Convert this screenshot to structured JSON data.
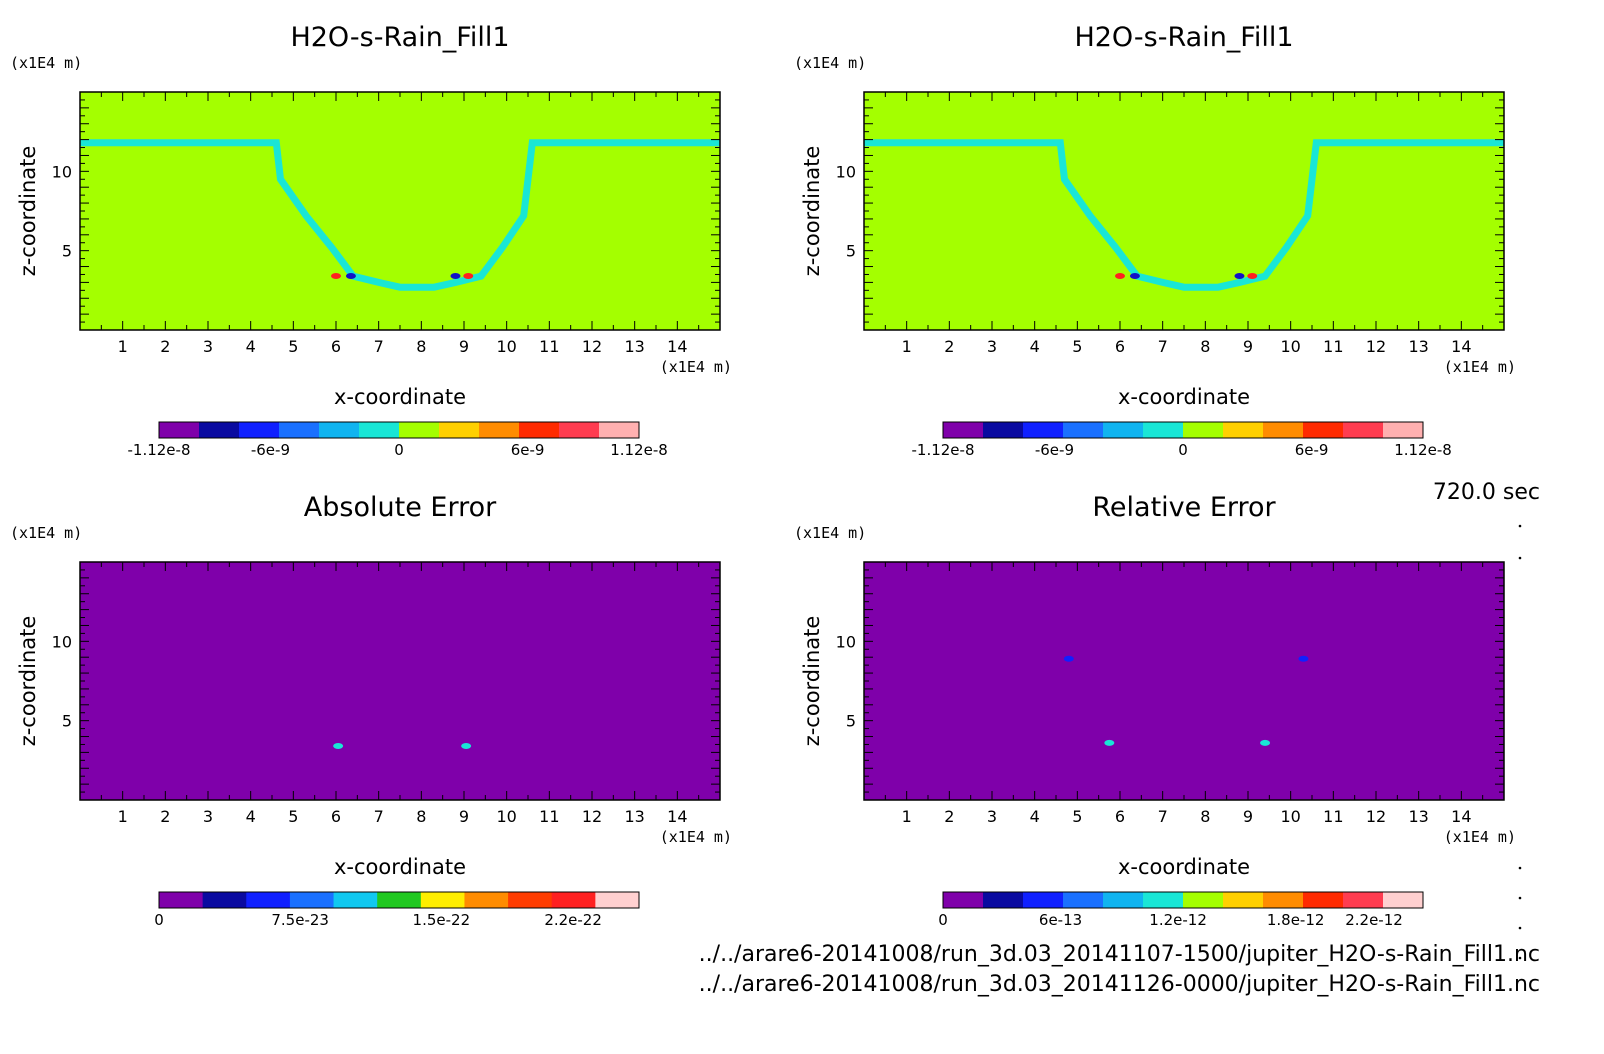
{
  "figure": {
    "time_label": "720.0 sec",
    "files": [
      "../../arare6-20141008/run_3d.03_20141107-1500/jupiter_H2O-s-Rain_Fill1.nc",
      "../../arare6-20141008/run_3d.03_20141126-0000/jupiter_H2O-s-Rain_Fill1.nc"
    ]
  },
  "chart_data": [
    {
      "type": "heatmap",
      "title": "H2O-s-Rain_Fill1",
      "xlabel": "x-coordinate",
      "ylabel": "z-coordinate",
      "x_unit": "(x1E4 m)",
      "y_unit": "(x1E4 m)",
      "xlim": [
        0,
        15
      ],
      "ylim": [
        0,
        15
      ],
      "x_ticks": [
        1,
        2,
        3,
        4,
        5,
        6,
        7,
        8,
        9,
        10,
        11,
        12,
        13,
        14
      ],
      "y_ticks": [
        5,
        10
      ],
      "field_kind": "rain",
      "background_color": "#a4ff00",
      "band_color": "#19e6d6",
      "band_path": [
        [
          0,
          11.8
        ],
        [
          4.6,
          11.8
        ],
        [
          4.7,
          9.5
        ],
        [
          5.3,
          7.2
        ],
        [
          5.9,
          5.2
        ],
        [
          6.4,
          3.4
        ],
        [
          7.0,
          3.0
        ],
        [
          7.5,
          2.7
        ],
        [
          8.3,
          2.7
        ],
        [
          8.8,
          3.0
        ],
        [
          9.4,
          3.4
        ],
        [
          9.9,
          5.2
        ],
        [
          10.4,
          7.2
        ],
        [
          10.5,
          9.5
        ],
        [
          10.6,
          11.8
        ],
        [
          15,
          11.8
        ]
      ],
      "spots": [
        {
          "x": 6.0,
          "y": 3.4,
          "color": "#ff2020"
        },
        {
          "x": 6.35,
          "y": 3.4,
          "color": "#1010c8"
        },
        {
          "x": 8.8,
          "y": 3.4,
          "color": "#1010c8"
        },
        {
          "x": 9.1,
          "y": 3.4,
          "color": "#ff2020"
        }
      ],
      "colorbar": {
        "colors": [
          "#7f00aa",
          "#0a0aa0",
          "#1020ff",
          "#1a70ff",
          "#10b4f0",
          "#19e6d6",
          "#a4ff00",
          "#ffd000",
          "#ff8c00",
          "#ff2a00",
          "#ff3c50",
          "#ffb0b0"
        ],
        "tick_labels": [
          {
            "value": -1.12e-08,
            "label": "-1.12e-8"
          },
          {
            "value": -6e-09,
            "label": "-6e-9"
          },
          {
            "value": 0,
            "label": "0"
          },
          {
            "value": 6e-09,
            "label": "6e-9"
          },
          {
            "value": 1.12e-08,
            "label": "1.12e-8"
          }
        ],
        "range": [
          -1.12e-08,
          1.12e-08
        ]
      }
    },
    {
      "type": "heatmap",
      "title": "H2O-s-Rain_Fill1",
      "xlabel": "x-coordinate",
      "ylabel": "z-coordinate",
      "x_unit": "(x1E4 m)",
      "y_unit": "(x1E4 m)",
      "xlim": [
        0,
        15
      ],
      "ylim": [
        0,
        15
      ],
      "x_ticks": [
        1,
        2,
        3,
        4,
        5,
        6,
        7,
        8,
        9,
        10,
        11,
        12,
        13,
        14
      ],
      "y_ticks": [
        5,
        10
      ],
      "field_kind": "rain",
      "background_color": "#a4ff00",
      "band_color": "#19e6d6",
      "band_path": [
        [
          0,
          11.8
        ],
        [
          4.6,
          11.8
        ],
        [
          4.7,
          9.5
        ],
        [
          5.3,
          7.2
        ],
        [
          5.9,
          5.2
        ],
        [
          6.4,
          3.4
        ],
        [
          7.0,
          3.0
        ],
        [
          7.5,
          2.7
        ],
        [
          8.3,
          2.7
        ],
        [
          8.8,
          3.0
        ],
        [
          9.4,
          3.4
        ],
        [
          9.9,
          5.2
        ],
        [
          10.4,
          7.2
        ],
        [
          10.5,
          9.5
        ],
        [
          10.6,
          11.8
        ],
        [
          15,
          11.8
        ]
      ],
      "spots": [
        {
          "x": 6.0,
          "y": 3.4,
          "color": "#ff2020"
        },
        {
          "x": 6.35,
          "y": 3.4,
          "color": "#1010c8"
        },
        {
          "x": 8.8,
          "y": 3.4,
          "color": "#1010c8"
        },
        {
          "x": 9.1,
          "y": 3.4,
          "color": "#ff2020"
        }
      ],
      "colorbar": {
        "colors": [
          "#7f00aa",
          "#0a0aa0",
          "#1020ff",
          "#1a70ff",
          "#10b4f0",
          "#19e6d6",
          "#a4ff00",
          "#ffd000",
          "#ff8c00",
          "#ff2a00",
          "#ff3c50",
          "#ffb0b0"
        ],
        "tick_labels": [
          {
            "value": -1.12e-08,
            "label": "-1.12e-8"
          },
          {
            "value": -6e-09,
            "label": "-6e-9"
          },
          {
            "value": 0,
            "label": "0"
          },
          {
            "value": 6e-09,
            "label": "6e-9"
          },
          {
            "value": 1.12e-08,
            "label": "1.12e-8"
          }
        ],
        "range": [
          -1.12e-08,
          1.12e-08
        ]
      }
    },
    {
      "type": "heatmap",
      "title": "Absolute Error",
      "xlabel": "x-coordinate",
      "ylabel": "z-coordinate",
      "x_unit": "(x1E4 m)",
      "y_unit": "(x1E4 m)",
      "xlim": [
        0,
        15
      ],
      "ylim": [
        0,
        15
      ],
      "x_ticks": [
        1,
        2,
        3,
        4,
        5,
        6,
        7,
        8,
        9,
        10,
        11,
        12,
        13,
        14
      ],
      "y_ticks": [
        5,
        10
      ],
      "field_kind": "error",
      "background_color": "#7f00aa",
      "spots": [
        {
          "x": 6.05,
          "y": 3.4,
          "color": "#19e6d6"
        },
        {
          "x": 9.05,
          "y": 3.4,
          "color": "#19e6d6"
        }
      ],
      "colorbar": {
        "colors": [
          "#7f00aa",
          "#0a0aa0",
          "#1020ff",
          "#1a70ff",
          "#10c8f0",
          "#20c820",
          "#ffee00",
          "#ff8c00",
          "#ff3c00",
          "#ff2020",
          "#ffd0d0"
        ],
        "tick_labels": [
          {
            "value": 0,
            "label": "0"
          },
          {
            "value": 7.5e-23,
            "label": "7.5e-23"
          },
          {
            "value": 1.5e-22,
            "label": "1.5e-22"
          },
          {
            "value": 2.2e-22,
            "label": "2.2e-22"
          }
        ],
        "range": [
          0,
          2.55e-22
        ]
      }
    },
    {
      "type": "heatmap",
      "title": "Relative Error",
      "xlabel": "x-coordinate",
      "ylabel": "z-coordinate",
      "x_unit": "(x1E4 m)",
      "y_unit": "(x1E4 m)",
      "xlim": [
        0,
        15
      ],
      "ylim": [
        0,
        15
      ],
      "x_ticks": [
        1,
        2,
        3,
        4,
        5,
        6,
        7,
        8,
        9,
        10,
        11,
        12,
        13,
        14
      ],
      "y_ticks": [
        5,
        10
      ],
      "field_kind": "error",
      "background_color": "#7f00aa",
      "spots": [
        {
          "x": 5.75,
          "y": 3.6,
          "color": "#19e6d6"
        },
        {
          "x": 9.4,
          "y": 3.6,
          "color": "#19e6d6"
        },
        {
          "x": 4.8,
          "y": 8.9,
          "color": "#1020ff"
        },
        {
          "x": 10.3,
          "y": 8.9,
          "color": "#1020ff"
        }
      ],
      "colorbar": {
        "colors": [
          "#7f00aa",
          "#0a0aa0",
          "#1020ff",
          "#1a70ff",
          "#10b4f0",
          "#19e6d6",
          "#a4ff00",
          "#ffd000",
          "#ff8c00",
          "#ff2a00",
          "#ff3c50",
          "#ffd0d0"
        ],
        "tick_labels": [
          {
            "value": 0,
            "label": "0"
          },
          {
            "value": 6e-13,
            "label": "6e-13"
          },
          {
            "value": 1.2e-12,
            "label": "1.2e-12"
          },
          {
            "value": 1.8e-12,
            "label": "1.8e-12"
          },
          {
            "value": 2.2e-12,
            "label": "2.2e-12"
          }
        ],
        "range": [
          0,
          2.45e-12
        ]
      }
    }
  ]
}
